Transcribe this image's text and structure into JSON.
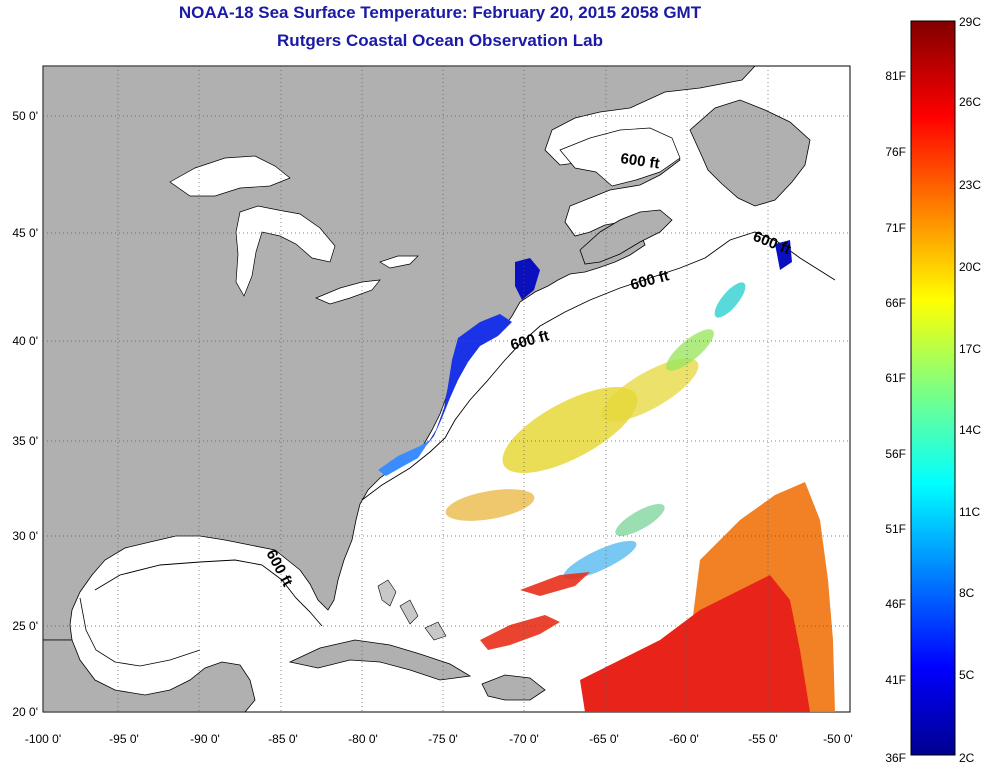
{
  "title": {
    "line1": "NOAA-18 Sea Surface Temperature:  February 20, 2015 2058 GMT",
    "line2": "Rutgers Coastal Ocean Observation Lab"
  },
  "map": {
    "lon_labels": [
      "-100 0'",
      "-95 0'",
      "-90 0'",
      "-85 0'",
      "-80 0'",
      "-75 0'",
      "-70 0'",
      "-65 0'",
      "-60 0'",
      "-55 0'",
      "-50 0'"
    ],
    "lat_labels": [
      "50 0'",
      "45 0'",
      "40 0'",
      "35 0'",
      "30 0'",
      "25 0'",
      "20 0'"
    ],
    "contour_label": "600 ft",
    "land_color": "#b0b0b0",
    "ocean_color": "#ffffff"
  },
  "colorbar": {
    "celsius_labels": [
      "29C",
      "26C",
      "23C",
      "20C",
      "17C",
      "14C",
      "11C",
      "8C",
      "5C",
      "2C"
    ],
    "fahrenheit_labels": [
      "81F",
      "76F",
      "71F",
      "66F",
      "61F",
      "56F",
      "51F",
      "46F",
      "41F",
      "36F"
    ],
    "min_c": 2,
    "max_c": 29
  }
}
